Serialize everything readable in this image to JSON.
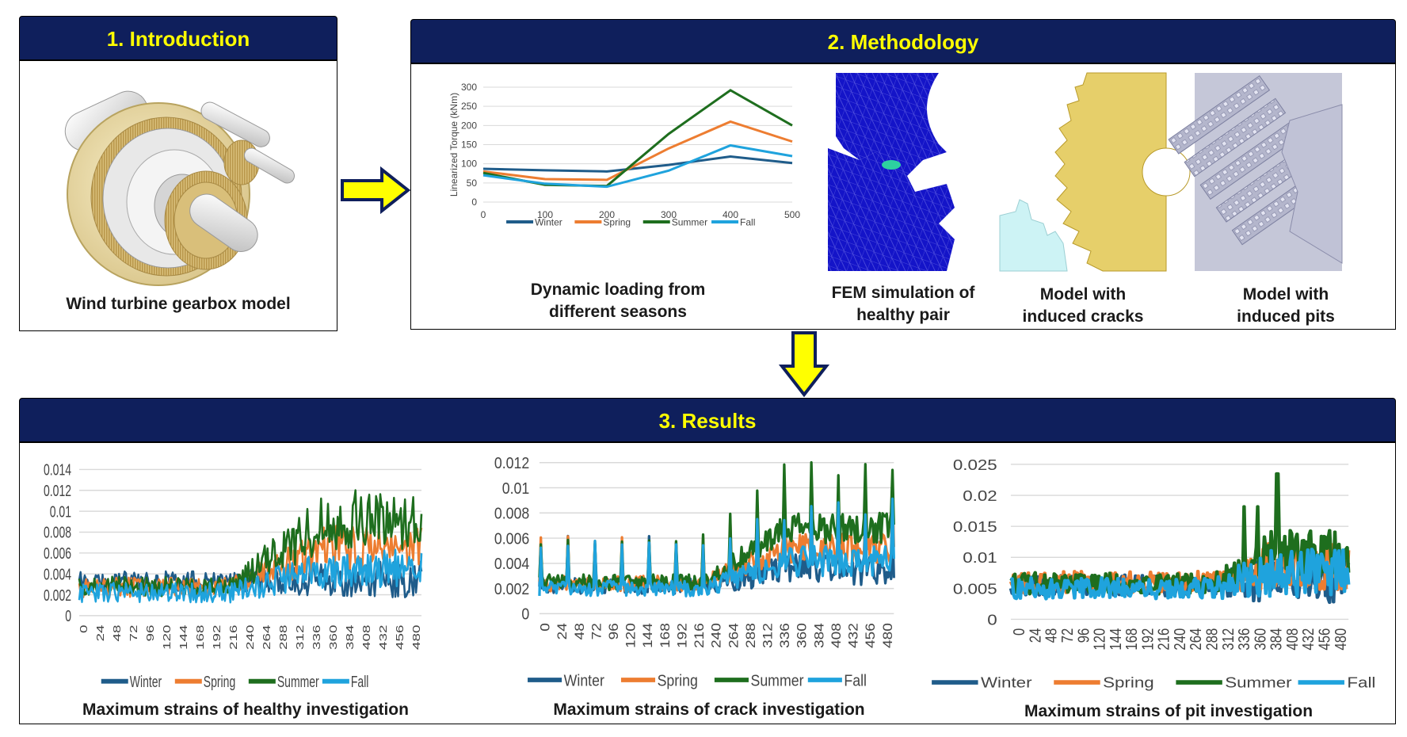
{
  "headers": {
    "introduction": "1. Introduction",
    "methodology": "2. Methodology",
    "results": "3. Results"
  },
  "captions": {
    "gearbox": "Wind turbine gearbox model",
    "dynamic_loading": [
      "Dynamic loading from",
      "different seasons"
    ],
    "fem": [
      "FEM simulation of",
      "healthy pair"
    ],
    "cracks": [
      "Model with",
      "induced cracks"
    ],
    "pits": [
      "Model with",
      "induced pits"
    ],
    "healthy": "Maximum strains of healthy investigation",
    "crack": "Maximum strains of crack investigation",
    "pit": "Maximum strains of pit investigation"
  },
  "colors": {
    "Winter": "#1f5c8a",
    "Spring": "#ed7d31",
    "Summer": "#1e6e1e",
    "Fall": "#1fa3dd",
    "header_bg": "#0f1f5c",
    "header_text": "#ffff00",
    "arrow_fill": "#ffff00"
  },
  "chart_data": [
    {
      "id": "torque",
      "type": "line",
      "ylabel": "Linearized Torque (kNm)",
      "x": [
        0,
        100,
        200,
        300,
        400,
        500
      ],
      "ylim": [
        0,
        300
      ],
      "yticks": [
        0,
        50,
        100,
        150,
        200,
        250,
        300
      ],
      "xticks": [
        0,
        100,
        200,
        300,
        400,
        500
      ],
      "grid": true,
      "legend": "bottom",
      "series": [
        {
          "name": "Winter",
          "values": [
            87,
            83,
            80,
            97,
            119,
            102
          ]
        },
        {
          "name": "Spring",
          "values": [
            80,
            60,
            58,
            140,
            210,
            158
          ]
        },
        {
          "name": "Summer",
          "values": [
            76,
            45,
            42,
            178,
            292,
            200
          ]
        },
        {
          "name": "Fall",
          "values": [
            70,
            48,
            40,
            82,
            148,
            120
          ]
        }
      ]
    },
    {
      "id": "healthy",
      "type": "line",
      "ylim": [
        0,
        0.014
      ],
      "yticks": [
        "0",
        "0.002",
        "0.004",
        "0.006",
        "0.008",
        "0.01",
        "0.012",
        "0.014"
      ],
      "xticks": [
        "0",
        "24",
        "48",
        "72",
        "96",
        "120",
        "144",
        "168",
        "192",
        "216",
        "240",
        "264",
        "288",
        "312",
        "336",
        "360",
        "384",
        "408",
        "432",
        "456",
        "480"
      ],
      "grid": true,
      "legend": "bottom",
      "series_names": [
        "Winter",
        "Spring",
        "Summer",
        "Fall"
      ]
    },
    {
      "id": "crack",
      "type": "line",
      "ylim": [
        0,
        0.012
      ],
      "yticks": [
        "0",
        "0.002",
        "0.004",
        "0.006",
        "0.008",
        "0.01",
        "0.012"
      ],
      "xticks": [
        "0",
        "24",
        "48",
        "72",
        "96",
        "120",
        "144",
        "168",
        "192",
        "216",
        "240",
        "264",
        "288",
        "312",
        "336",
        "360",
        "384",
        "408",
        "432",
        "456",
        "480"
      ],
      "grid": true,
      "legend": "bottom",
      "series_names": [
        "Winter",
        "Spring",
        "Summer",
        "Fall"
      ]
    },
    {
      "id": "pit",
      "type": "line",
      "ylim": [
        0,
        0.025
      ],
      "yticks": [
        "0",
        "0.005",
        "0.01",
        "0.015",
        "0.02",
        "0.025"
      ],
      "xticks": [
        "0",
        "24",
        "48",
        "72",
        "96",
        "120",
        "144",
        "168",
        "192",
        "216",
        "240",
        "264",
        "288",
        "312",
        "336",
        "360",
        "384",
        "408",
        "432",
        "456",
        "480"
      ],
      "grid": true,
      "legend": "bottom",
      "series_names": [
        "Winter",
        "Spring",
        "Summer",
        "Fall"
      ]
    }
  ]
}
